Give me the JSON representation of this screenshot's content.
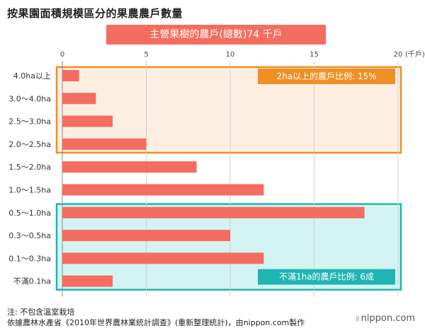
{
  "title": "按果園面積規模區分的果農農戶數量",
  "chart_data": {
    "type": "bar",
    "orientation": "horizontal",
    "title": "主營果樹的農戶(總數)74 千戶",
    "categories": [
      "4.0ha以上",
      "3.0～4.0ha",
      "2.5～3.0ha",
      "2.0～2.5ha",
      "1.5～2.0ha",
      "1.0～1.5ha",
      "0.5～1.0ha",
      "0.3～0.5ha",
      "0.1～0.3ha",
      "不滿0.1ha"
    ],
    "values": [
      1,
      2,
      3,
      5,
      8,
      12,
      18,
      10,
      12,
      3
    ],
    "xlim": [
      0,
      20
    ],
    "xticks": [
      0,
      5,
      10,
      15,
      20
    ],
    "xunit": "(千戶)",
    "grid": true,
    "bar_color": "#f36d60",
    "annotations": [
      {
        "label": "2ha以上的農戶比例: 15%",
        "group": [
          "4.0ha以上",
          "3.0～4.0ha",
          "2.5～3.0ha",
          "2.0～2.5ha"
        ],
        "color": "#ef8f24",
        "fill": "#fdeee2"
      },
      {
        "label": "不滿1ha的農戶比例: 6成",
        "group": [
          "0.5～1.0ha",
          "0.3～0.5ha",
          "0.1～0.3ha",
          "不滿0.1ha"
        ],
        "color": "#1fb5b3",
        "fill": "#d4f4f4"
      }
    ]
  },
  "footer": {
    "note": "注: 不包含溫室栽培",
    "source": "依據農林水產省《2010年世界農林業統計調查》(重新整理統計)，由nippon.com製作"
  },
  "brand": "nippon.com"
}
